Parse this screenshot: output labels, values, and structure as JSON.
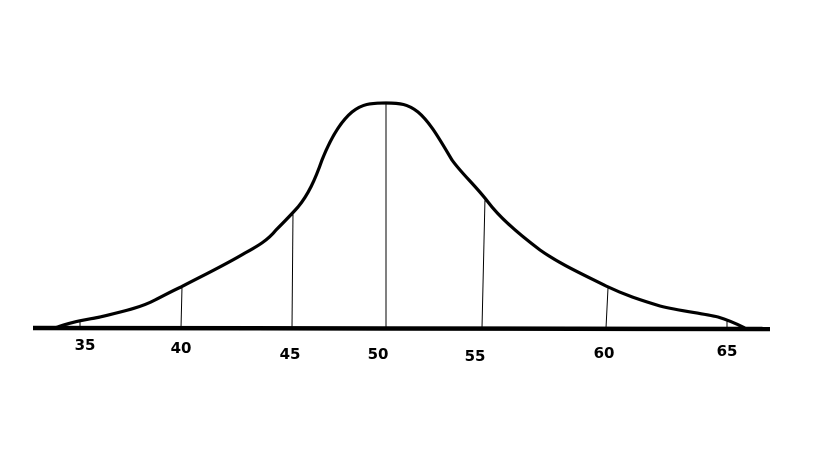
{
  "diagram": {
    "type": "normal-distribution-curve",
    "line_color": "#000000",
    "background": "#ffffff",
    "tick_labels": [
      "35",
      "40",
      "45",
      "50",
      "55",
      "60",
      "65"
    ]
  }
}
